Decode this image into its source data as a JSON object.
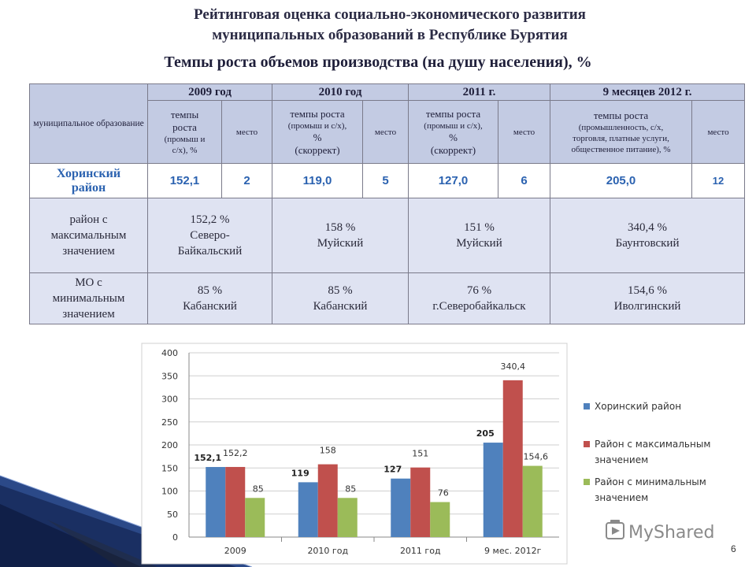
{
  "header": {
    "title_line1": "Рейтинговая оценка социально-экономического развития",
    "title_line2": "муниципальных образований в Республике Бурятия",
    "subtitle": "Темпы роста объемов производства  (на душу населения), %"
  },
  "table": {
    "mo_header": "муниципальное образование",
    "periods": [
      "2009 год",
      "2010 год",
      "2011 г.",
      "9 месяцев  2012 г."
    ],
    "col2009": {
      "a": "темпы",
      "b": "роста",
      "c": "(промыш и",
      "d": "с/х), %"
    },
    "col2010": {
      "a": "темпы роста",
      "b": "(промыш и с/х),",
      "c": "%",
      "d": "(скоррект)"
    },
    "col2011": {
      "a": "темпы роста",
      "b": "(промыш и с/х),",
      "c": "%",
      "d": "(скоррект)"
    },
    "col2012": {
      "a": "темпы роста",
      "b": "(промышленность, с/х,",
      "c": "торговля, платные услуги,",
      "d": "общественное питание), %"
    },
    "place_label": "место",
    "khorinsky": {
      "name_l1": "Хоринский",
      "name_l2": "район",
      "cells": [
        "152,1",
        "2",
        "119,0",
        "5",
        "127,0",
        "6",
        "205,0",
        "12"
      ]
    },
    "max_row": {
      "label_l1": "район с",
      "label_l2": "максимальным",
      "label_l3": "значением",
      "c2009": {
        "v": "152,2 %",
        "n1": "Северо-",
        "n2": "Байкальский"
      },
      "c2010": {
        "v": "158 %",
        "n1": "Муйский"
      },
      "c2011": {
        "v": "151 %",
        "n1": "Муйский"
      },
      "c2012": {
        "v": "340,4 %",
        "n1": "Баунтовский"
      }
    },
    "min_row": {
      "label_l1": "МО  с",
      "label_l2": "минимальным",
      "label_l3": "значением",
      "c2009": {
        "v": "85 %",
        "n1": "Кабанский"
      },
      "c2010": {
        "v": "85 %",
        "n1": "Кабанский"
      },
      "c2011": {
        "v": "76 %",
        "n1": "г.Северобайкальск"
      },
      "c2012": {
        "v": "154,6 %",
        "n1": "Иволгинский"
      }
    }
  },
  "chart_data": {
    "type": "bar",
    "categories": [
      "2009",
      "2010 год",
      "2011 год",
      "9 мес.  2012г"
    ],
    "series": [
      {
        "name": "Хоринский район",
        "values": [
          152.1,
          119,
          127,
          205
        ],
        "labels": [
          "152,1",
          "119",
          "127",
          "205"
        ],
        "color": "#4f81bd"
      },
      {
        "name": "Район с максимальным значением",
        "values": [
          152.2,
          158,
          151,
          340.4
        ],
        "labels": [
          "152,2",
          "158",
          "151",
          "340,4"
        ],
        "color": "#c0504d"
      },
      {
        "name": "Район с минимальным значением",
        "values": [
          85,
          85,
          76,
          154.6
        ],
        "labels": [
          "85",
          "85",
          "76",
          "154,6"
        ],
        "color": "#9bbb59"
      }
    ],
    "legend_lines": [
      [
        "Хоринский район"
      ],
      [
        "Район с максимальным",
        "значением"
      ],
      [
        "Район с минимальным",
        "значением"
      ]
    ],
    "y_ticks": [
      0,
      50,
      100,
      150,
      200,
      250,
      300,
      350,
      400
    ],
    "ylim": [
      0,
      400
    ],
    "legend_position": "right"
  },
  "footer": {
    "watermark": "MyShared",
    "page_number": "6"
  }
}
